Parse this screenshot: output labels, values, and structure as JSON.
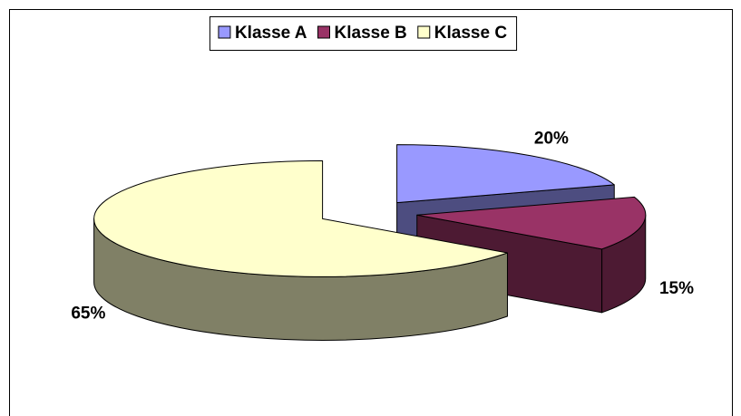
{
  "chart_data": {
    "type": "pie3d",
    "categories": [
      "Klasse A",
      "Klasse B",
      "Klasse C"
    ],
    "values": [
      20,
      15,
      65
    ],
    "value_labels": [
      "20%",
      "15%",
      "65%"
    ],
    "colors": [
      "#9999ff",
      "#993366",
      "#ffffcc"
    ],
    "legend": "top"
  }
}
